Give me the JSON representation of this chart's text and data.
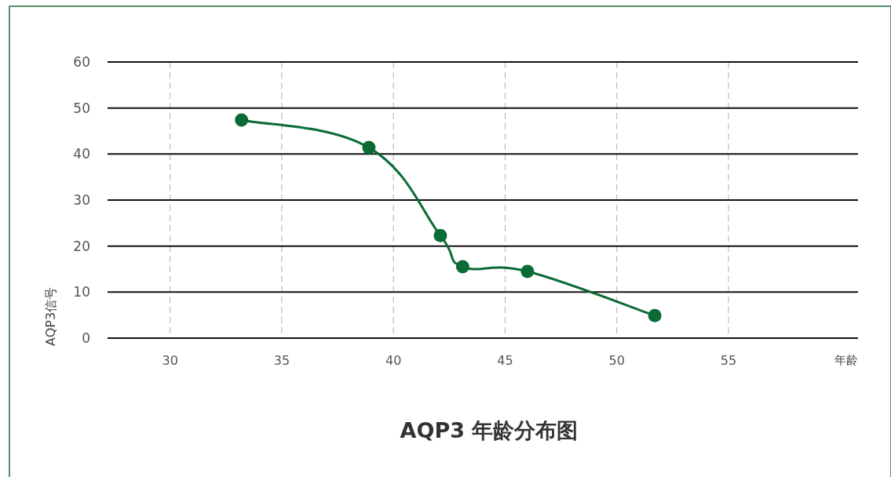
{
  "chart_data": {
    "type": "line",
    "title": "AQP3 年龄分布图",
    "xlabel": "年龄",
    "ylabel": "AQP3信号",
    "xlim": [
      27.2,
      60.8
    ],
    "xticks": [
      30,
      35,
      40,
      45,
      50,
      55
    ],
    "ylim": [
      0,
      60
    ],
    "yticks": [
      0,
      10,
      20,
      30,
      40,
      50,
      60
    ],
    "grid": true,
    "marker": "circle",
    "line_style": "solid",
    "series": [
      {
        "color": "#0b6b35",
        "x": [
          33.2,
          38.9,
          42.1,
          43.1,
          46,
          51.7
        ],
        "values": [
          47.4,
          41.4,
          22.3,
          15.5,
          14.5,
          4.9
        ]
      }
    ]
  }
}
